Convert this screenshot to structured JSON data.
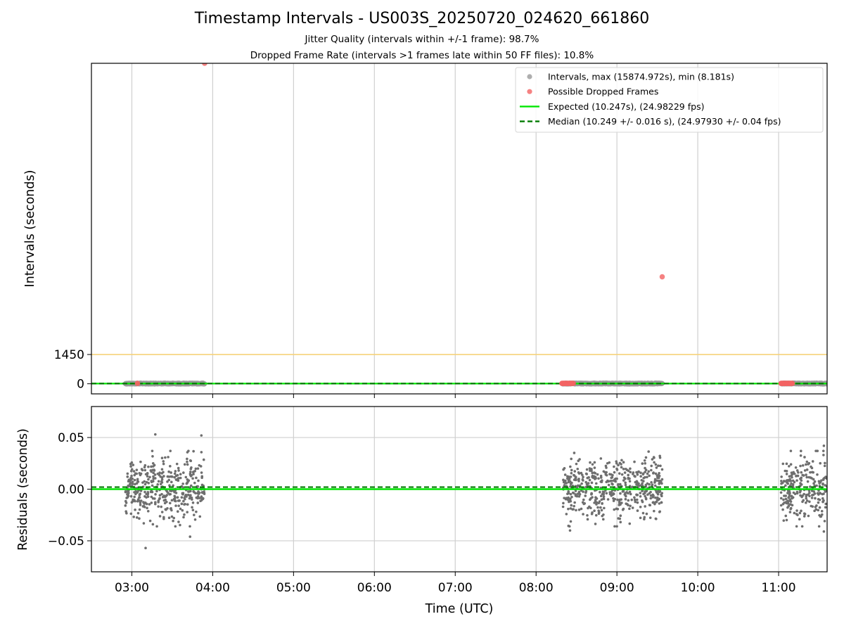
{
  "title": "Timestamp Intervals - US003S_20250720_024620_661860",
  "subtitle_lines": [
    "Jitter Quality (intervals within +/-1 frame): 98.7%",
    "Dropped Frame Rate (intervals >1 frames late within 50 FF files): 10.8%"
  ],
  "chart_data": [
    {
      "type": "scatter",
      "panel": "top",
      "ylabel": "Intervals (seconds)",
      "xlabel": "",
      "x_unit": "hours UTC",
      "xlim": [
        2.5,
        11.6
      ],
      "ylim": [
        -500,
        15874.972
      ],
      "yticks": [
        0,
        1450
      ],
      "yticks_labels": [
        "0",
        "1450"
      ],
      "xticks": [
        3,
        4,
        5,
        6,
        7,
        8,
        9,
        10,
        11
      ],
      "grid": "x",
      "threshold_line": {
        "y": 1450,
        "color": "#f6d27a"
      },
      "legend": {
        "placement": "top-right",
        "entries": [
          {
            "label": "Intervals, max (15874.972s), min (8.181s)",
            "marker": "dot",
            "color": "#9a9a9a"
          },
          {
            "label": "Possible Dropped Frames",
            "marker": "dot",
            "color": "#f26363"
          },
          {
            "label": "Expected (10.247s), (24.98229 fps)",
            "marker": "line",
            "color": "#00e600"
          },
          {
            "label": "Median (10.249 +/- 0.016 s), (24.97930 +/- 0.04 fps)",
            "marker": "dashed",
            "color": "#007a00"
          }
        ]
      },
      "expected_interval": 10.247,
      "median_interval": 10.249,
      "segments": [
        {
          "start": "02:55",
          "end": "03:54",
          "x_start": 2.92,
          "x_end": 3.9
        },
        {
          "start": "08:20",
          "end": "09:34",
          "x_start": 8.33,
          "x_end": 9.56
        },
        {
          "start": "11:02",
          "end": "11:36",
          "x_start": 11.03,
          "x_end": 11.6
        }
      ],
      "dropped_frames": [
        {
          "x": 3.9,
          "y": 15874.972
        },
        {
          "x": 9.56,
          "y": 5300
        },
        {
          "x": 3.07,
          "y": 20
        }
      ],
      "dropped_clusters": [
        {
          "x_start": 8.32,
          "x_end": 8.46,
          "y": 20
        },
        {
          "x_start": 11.03,
          "x_end": 11.17,
          "y": 20
        }
      ]
    },
    {
      "type": "scatter",
      "panel": "bottom",
      "ylabel": "Residuals (seconds)",
      "xlabel": "Time (UTC)",
      "x_unit": "hours UTC",
      "xlim": [
        2.5,
        11.6
      ],
      "ylim": [
        -0.08,
        0.08
      ],
      "yticks": [
        0.05,
        0.0,
        -0.05
      ],
      "yticks_labels": [
        "0.05",
        "0.00",
        "−0.05"
      ],
      "xticks": [
        3,
        4,
        5,
        6,
        7,
        8,
        9,
        10,
        11
      ],
      "xticks_labels": [
        "03:00",
        "04:00",
        "05:00",
        "06:00",
        "07:00",
        "08:00",
        "09:00",
        "10:00",
        "11:00"
      ],
      "grid": "both",
      "zero_line_color": "#00e600",
      "median_offset": 0.002,
      "residual_spread": 0.015,
      "outliers": [
        {
          "x": 3.29,
          "y": 0.053
        },
        {
          "x": 3.86,
          "y": 0.052
        },
        {
          "x": 3.17,
          "y": -0.057
        },
        {
          "x": 3.72,
          "y": -0.046
        },
        {
          "x": 11.56,
          "y": 0.042
        },
        {
          "x": 11.56,
          "y": -0.041
        },
        {
          "x": 8.42,
          "y": -0.04
        }
      ]
    }
  ]
}
